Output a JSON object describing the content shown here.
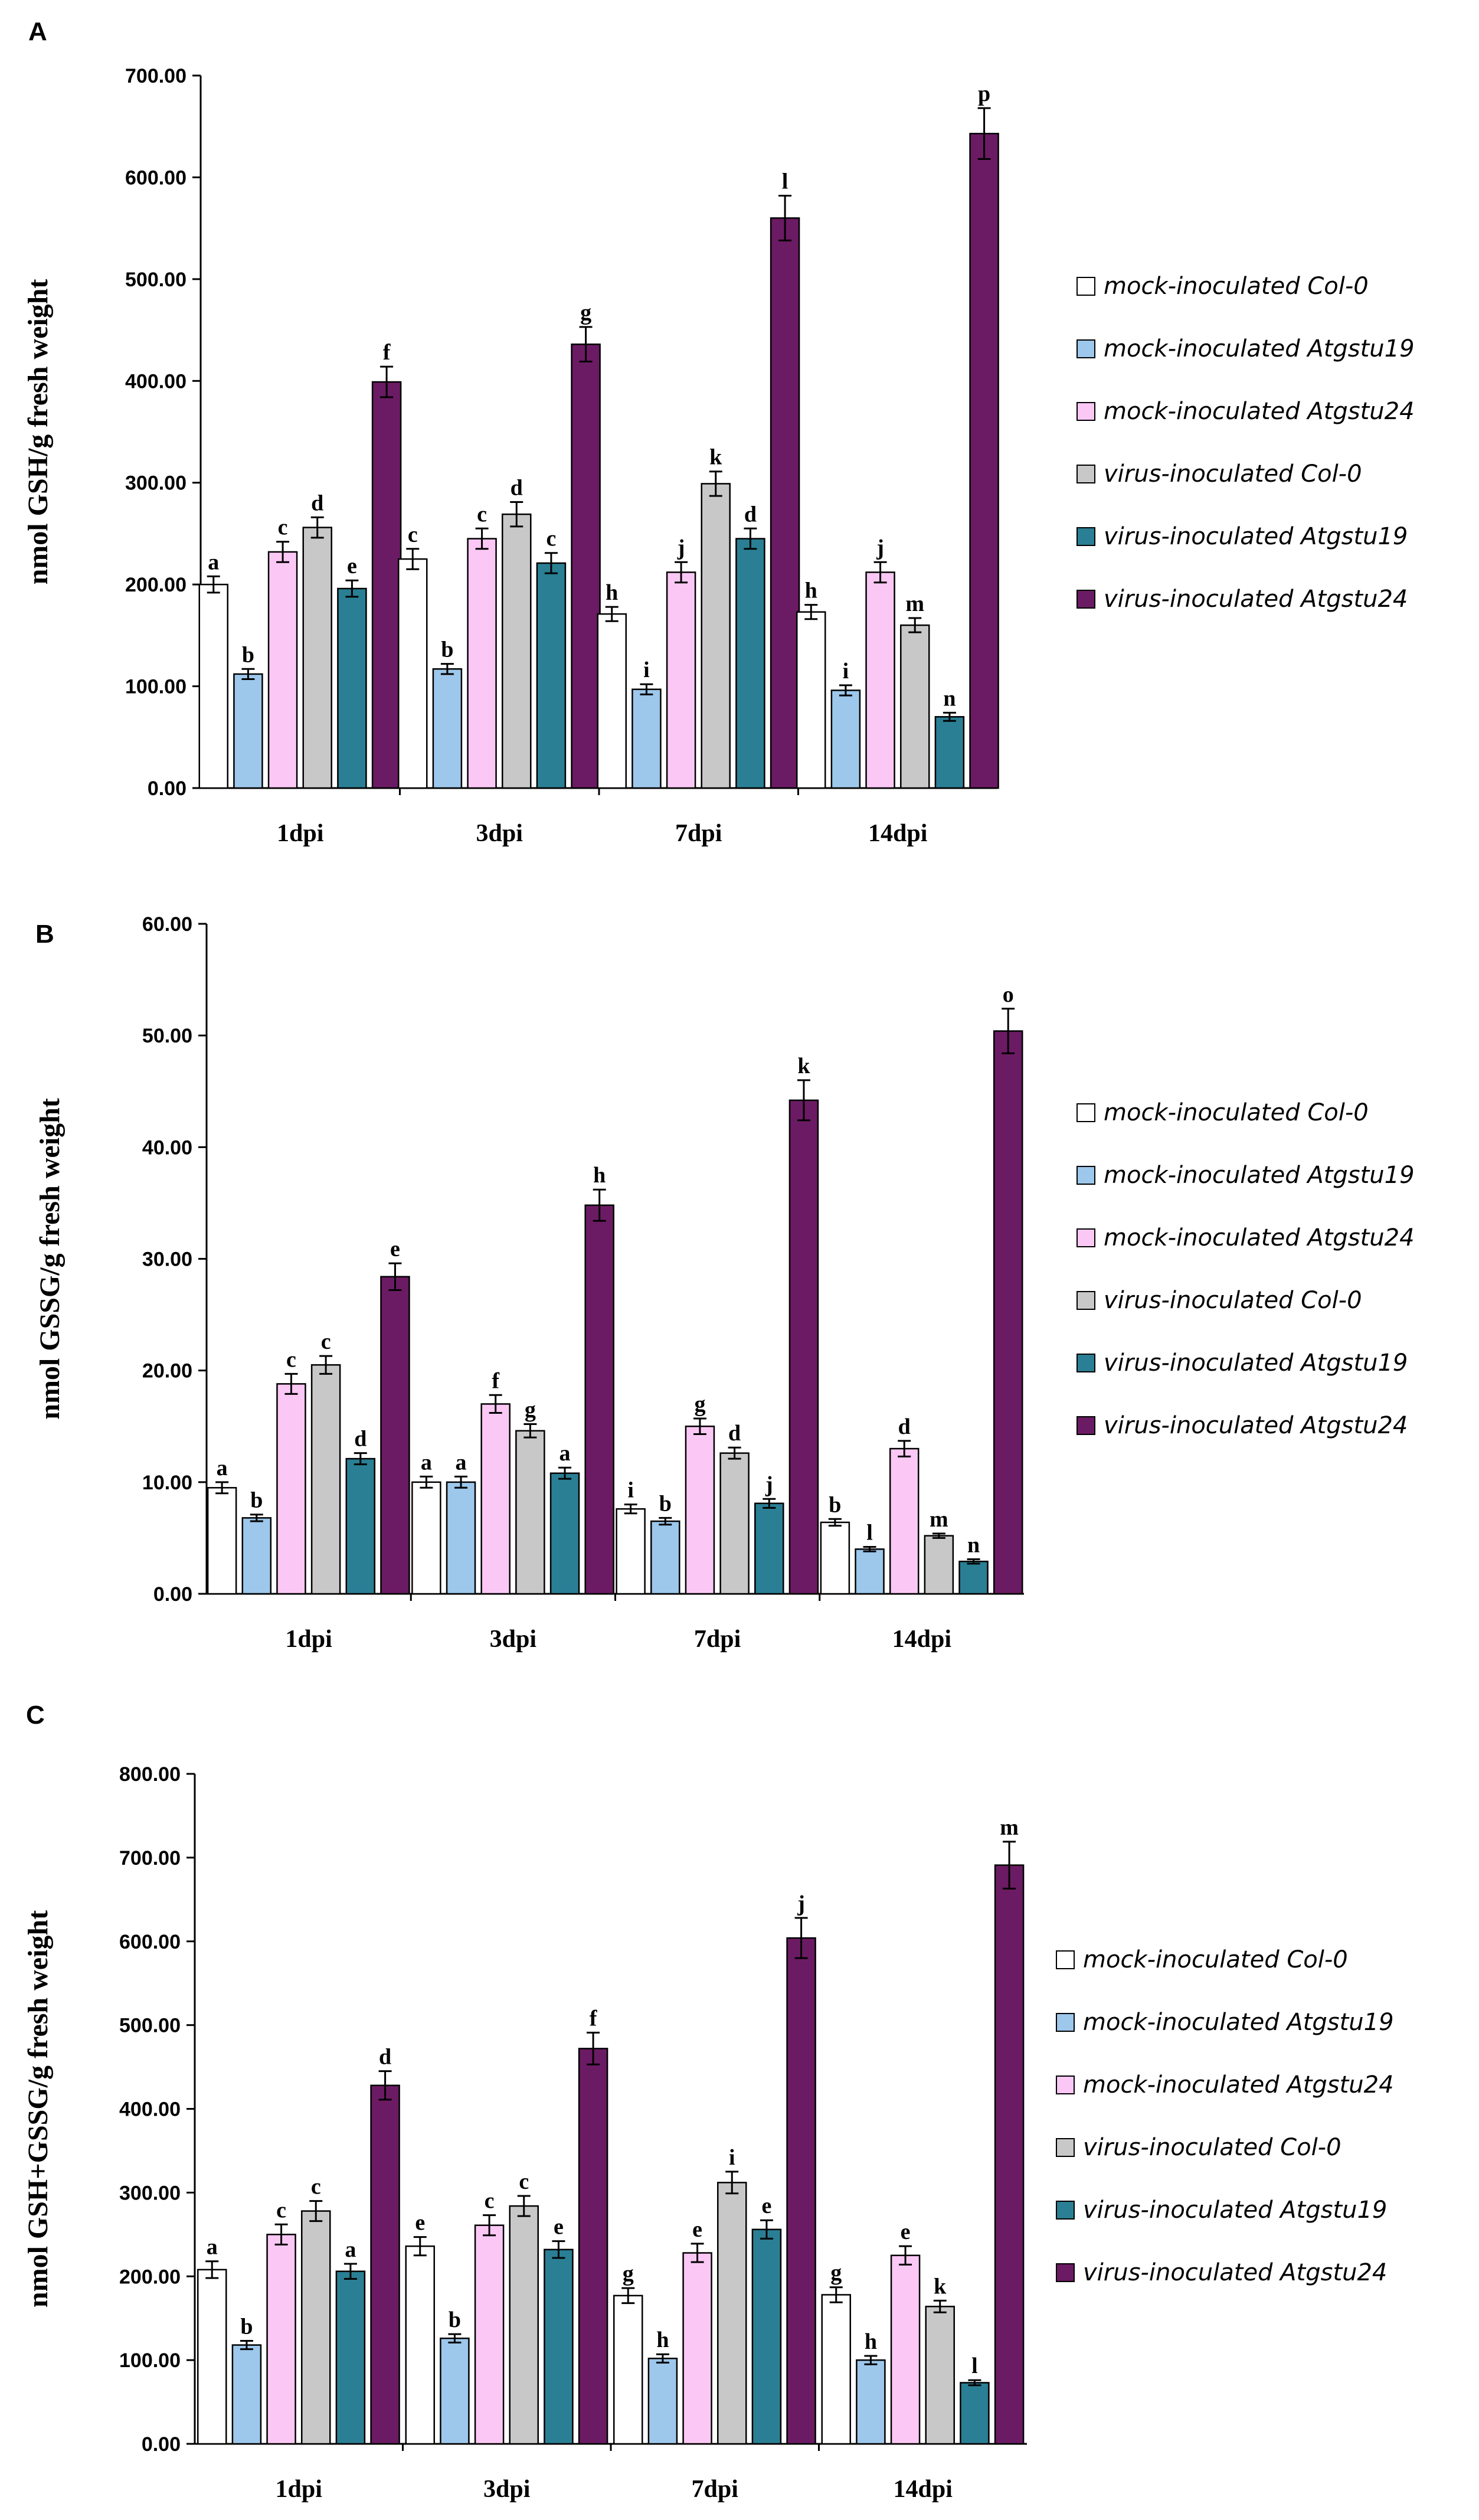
{
  "colors": {
    "mock_col0": "#ffffff",
    "mock_atgstu19": "#9dc7eb",
    "mock_atgstu24": "#fbc8f5",
    "virus_col0": "#c8c8c8",
    "virus_atgstu19": "#2a7f94",
    "virus_atgstu24": "#6b1b63"
  },
  "chart_data": [
    {
      "type": "bar",
      "panel": "A",
      "title": "",
      "ylabel": "nmol GSH/g  fresh weight",
      "xlabel": "",
      "ylim": [
        0,
        700
      ],
      "yticks": [
        "0.00",
        "100.00",
        "200.00",
        "300.00",
        "400.00",
        "500.00",
        "600.00",
        "700.00"
      ],
      "categories": [
        "1dpi",
        "3dpi",
        "7dpi",
        "14dpi"
      ],
      "legend_position": "right",
      "series": [
        {
          "name": "mock-inoculated Col-0",
          "color_key": "mock_col0",
          "values": [
            200,
            225,
            171,
            173
          ],
          "errors": [
            8,
            10,
            7,
            7
          ],
          "labels": [
            "a",
            "c",
            "h",
            "h"
          ]
        },
        {
          "name": "mock-inoculated Atgstu19",
          "color_key": "mock_atgstu19",
          "values": [
            112,
            117,
            97,
            96
          ],
          "errors": [
            5,
            5,
            5,
            5
          ],
          "labels": [
            "b",
            "b",
            "i",
            "i"
          ]
        },
        {
          "name": "mock-inoculated Atgstu24",
          "color_key": "mock_atgstu24",
          "values": [
            232,
            245,
            212,
            212
          ],
          "errors": [
            10,
            10,
            10,
            10
          ],
          "labels": [
            "c",
            "c",
            "j",
            "j"
          ]
        },
        {
          "name": "virus-inoculated Col-0",
          "color_key": "virus_col0",
          "values": [
            256,
            269,
            299,
            160
          ],
          "errors": [
            10,
            12,
            12,
            7
          ],
          "labels": [
            "d",
            "d",
            "k",
            "m"
          ]
        },
        {
          "name": "virus-inoculated Atgstu19",
          "color_key": "virus_atgstu19",
          "values": [
            196,
            221,
            245,
            70
          ],
          "errors": [
            8,
            10,
            10,
            4
          ],
          "labels": [
            "e",
            "c",
            "d",
            "n"
          ]
        },
        {
          "name": "virus-inoculated Atgstu24",
          "color_key": "virus_atgstu24",
          "values": [
            399,
            436,
            560,
            643
          ],
          "errors": [
            15,
            17,
            22,
            25
          ],
          "labels": [
            "f",
            "g",
            "l",
            "p"
          ]
        }
      ]
    },
    {
      "type": "bar",
      "panel": "B",
      "title": "",
      "ylabel": "nmol GSSG/g  fresh weight",
      "xlabel": "",
      "ylim": [
        0,
        60
      ],
      "yticks": [
        "0.00",
        "10.00",
        "20.00",
        "30.00",
        "40.00",
        "50.00",
        "60.00"
      ],
      "categories": [
        "1dpi",
        "3dpi",
        "7dpi",
        "14dpi"
      ],
      "legend_position": "right",
      "series": [
        {
          "name": "mock-inoculated Col-0",
          "color_key": "mock_col0",
          "values": [
            9.5,
            10.0,
            7.6,
            6.4
          ],
          "errors": [
            0.5,
            0.5,
            0.4,
            0.3
          ],
          "labels": [
            "a",
            "a",
            "i",
            "b"
          ]
        },
        {
          "name": "mock-inoculated Atgstu19",
          "color_key": "mock_atgstu19",
          "values": [
            6.8,
            10.0,
            6.5,
            4.0
          ],
          "errors": [
            0.3,
            0.5,
            0.3,
            0.2
          ],
          "labels": [
            "b",
            "a",
            "b",
            "l"
          ]
        },
        {
          "name": "mock-inoculated Atgstu24",
          "color_key": "mock_atgstu24",
          "values": [
            18.8,
            17.0,
            15.0,
            13.0
          ],
          "errors": [
            0.9,
            0.8,
            0.7,
            0.7
          ],
          "labels": [
            "c",
            "f",
            "g",
            "d"
          ]
        },
        {
          "name": "virus-inoculated Col-0",
          "color_key": "virus_col0",
          "values": [
            20.5,
            14.6,
            12.6,
            5.2
          ],
          "errors": [
            0.8,
            0.6,
            0.5,
            0.2
          ],
          "labels": [
            "c",
            "g",
            "d",
            "m"
          ]
        },
        {
          "name": "virus-inoculated Atgstu19",
          "color_key": "virus_atgstu19",
          "values": [
            12.1,
            10.8,
            8.1,
            2.9
          ],
          "errors": [
            0.5,
            0.5,
            0.4,
            0.2
          ],
          "labels": [
            "d",
            "a",
            "j",
            "n"
          ]
        },
        {
          "name": "virus-inoculated Atgstu24",
          "color_key": "virus_atgstu24",
          "values": [
            28.4,
            34.8,
            44.2,
            50.4
          ],
          "errors": [
            1.2,
            1.4,
            1.8,
            2.0
          ],
          "labels": [
            "e",
            "h",
            "k",
            "o"
          ]
        }
      ]
    },
    {
      "type": "bar",
      "panel": "C",
      "title": "",
      "ylabel": "nmol GSH+GSSG/g  fresh weight",
      "xlabel": "",
      "ylim": [
        0,
        800
      ],
      "yticks": [
        "0.00",
        "100.00",
        "200.00",
        "300.00",
        "400.00",
        "500.00",
        "600.00",
        "700.00",
        "800.00"
      ],
      "categories": [
        "1dpi",
        "3dpi",
        "7dpi",
        "14dpi"
      ],
      "legend_position": "right",
      "series": [
        {
          "name": "mock-inoculated Col-0",
          "color_key": "mock_col0",
          "values": [
            208,
            236,
            177,
            178
          ],
          "errors": [
            10,
            11,
            9,
            9
          ],
          "labels": [
            "a",
            "e",
            "g",
            "g"
          ]
        },
        {
          "name": "mock-inoculated Atgstu19",
          "color_key": "mock_atgstu19",
          "values": [
            118,
            126,
            102,
            100
          ],
          "errors": [
            5,
            5,
            5,
            5
          ],
          "labels": [
            "b",
            "b",
            "h",
            "h"
          ]
        },
        {
          "name": "mock-inoculated Atgstu24",
          "color_key": "mock_atgstu24",
          "values": [
            250,
            261,
            228,
            225
          ],
          "errors": [
            12,
            12,
            11,
            11
          ],
          "labels": [
            "c",
            "c",
            "e",
            "e"
          ]
        },
        {
          "name": "virus-inoculated Col-0",
          "color_key": "virus_col0",
          "values": [
            278,
            284,
            312,
            164
          ],
          "errors": [
            12,
            12,
            13,
            7
          ],
          "labels": [
            "c",
            "c",
            "i",
            "k"
          ]
        },
        {
          "name": "virus-inoculated Atgstu19",
          "color_key": "virus_atgstu19",
          "values": [
            206,
            232,
            256,
            73
          ],
          "errors": [
            9,
            10,
            11,
            3
          ],
          "labels": [
            "a",
            "e",
            "e",
            "l"
          ]
        },
        {
          "name": "virus-inoculated Atgstu24",
          "color_key": "virus_atgstu24",
          "values": [
            428,
            472,
            604,
            691
          ],
          "errors": [
            17,
            19,
            24,
            28
          ],
          "labels": [
            "d",
            "f",
            "j",
            "m"
          ]
        }
      ]
    }
  ]
}
